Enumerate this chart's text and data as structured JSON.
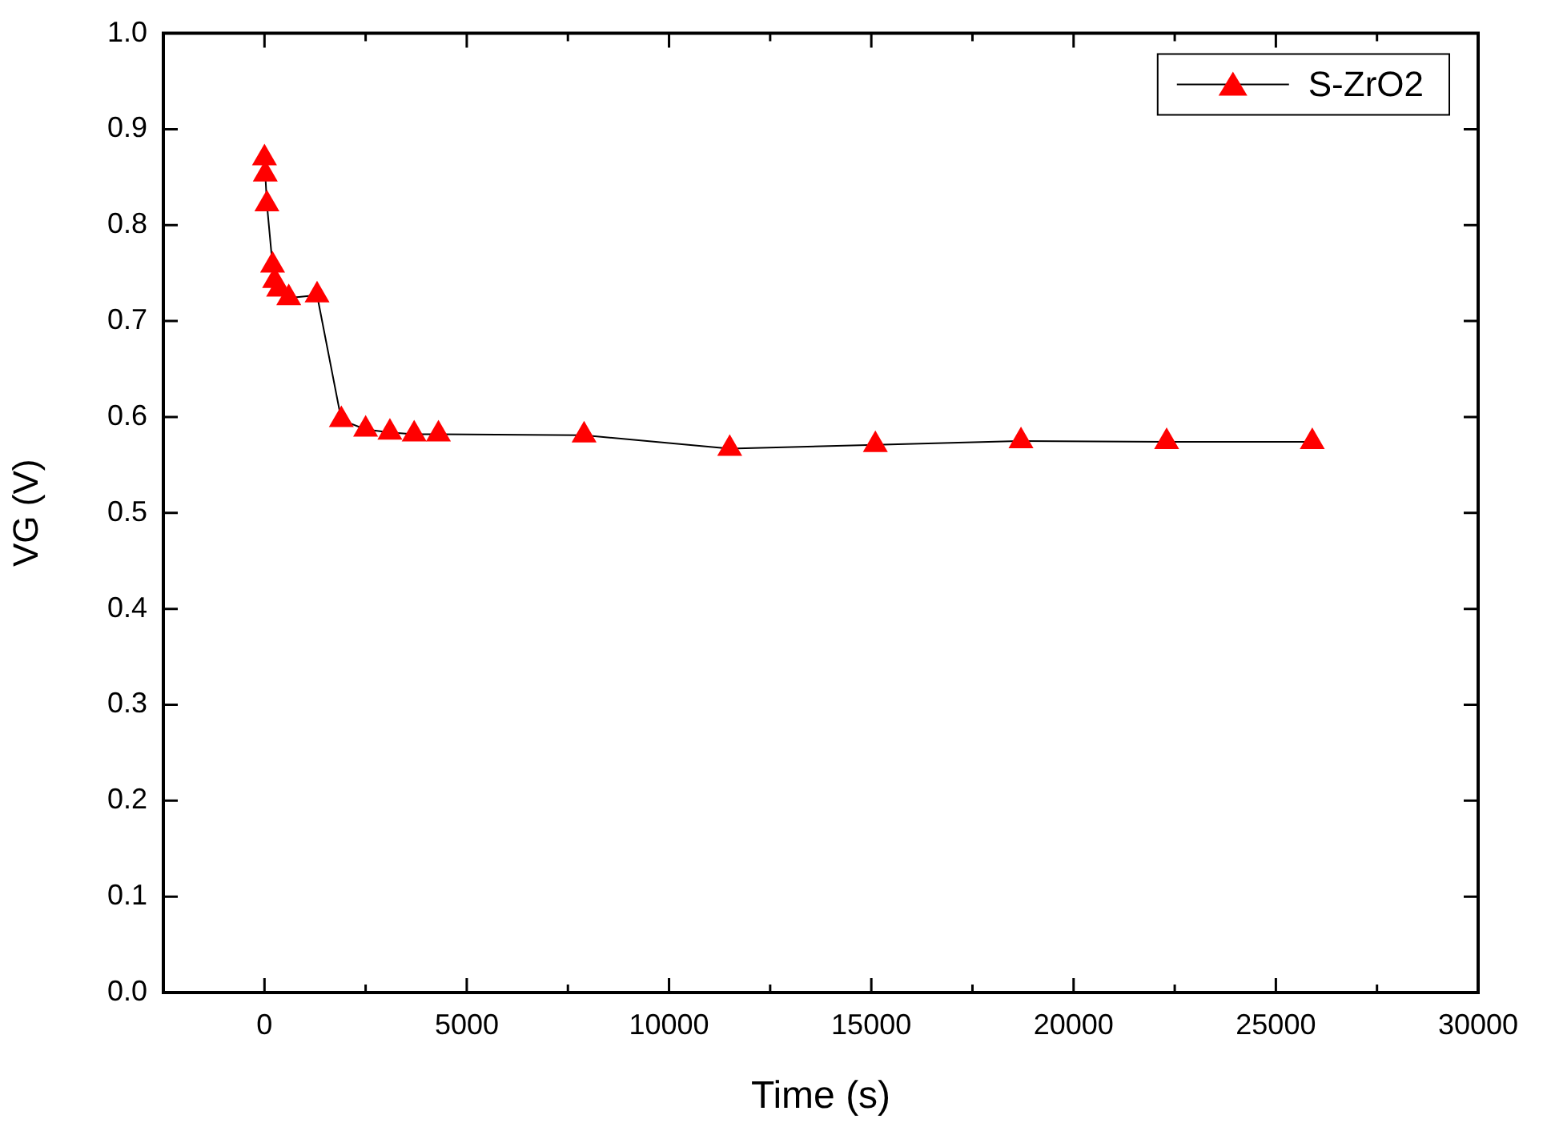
{
  "chart_data": {
    "type": "line",
    "xlabel": "Time (s)",
    "ylabel": "VG (V)",
    "xlim": [
      -2500,
      30000
    ],
    "xticks": [
      0,
      {
        "value": 2500,
        "label": null
      },
      5000,
      {
        "value": 7500,
        "label": null
      },
      10000,
      {
        "value": 12500,
        "label": null
      },
      15000,
      {
        "value": 17500,
        "label": null
      },
      20000,
      {
        "value": 22500,
        "label": null
      },
      25000,
      {
        "value": 27500,
        "label": null
      },
      30000
    ],
    "ylim": [
      0,
      1
    ],
    "yticks": [
      {
        "value": 0,
        "label": "0.0"
      },
      0.1,
      0.2,
      0.3,
      0.4,
      0.5,
      0.6,
      0.7,
      0.8,
      0.9,
      {
        "value": 1,
        "label": "1.0"
      }
    ],
    "grid": false,
    "legend": "top right",
    "marker": "triangle",
    "line_style": "solid",
    "series": [
      {
        "name": "S-ZrO2",
        "color": "#ff0000",
        "x": [
          0,
          20,
          40,
          60,
          200,
          250,
          350,
          550,
          600,
          1300,
          1900,
          2500,
          3100,
          3700,
          4300,
          7900,
          11500,
          15100,
          18700,
          22300,
          25900
        ],
        "values": [
          0.87,
          0.853,
          null,
          0.822,
          0.758,
          0.742,
          0.733,
          null,
          0.724,
          0.727,
          0.597,
          0.587,
          0.584,
          0.582,
          0.582,
          0.581,
          0.567,
          0.571,
          0.575,
          0.574,
          0.574
        ]
      }
    ]
  }
}
